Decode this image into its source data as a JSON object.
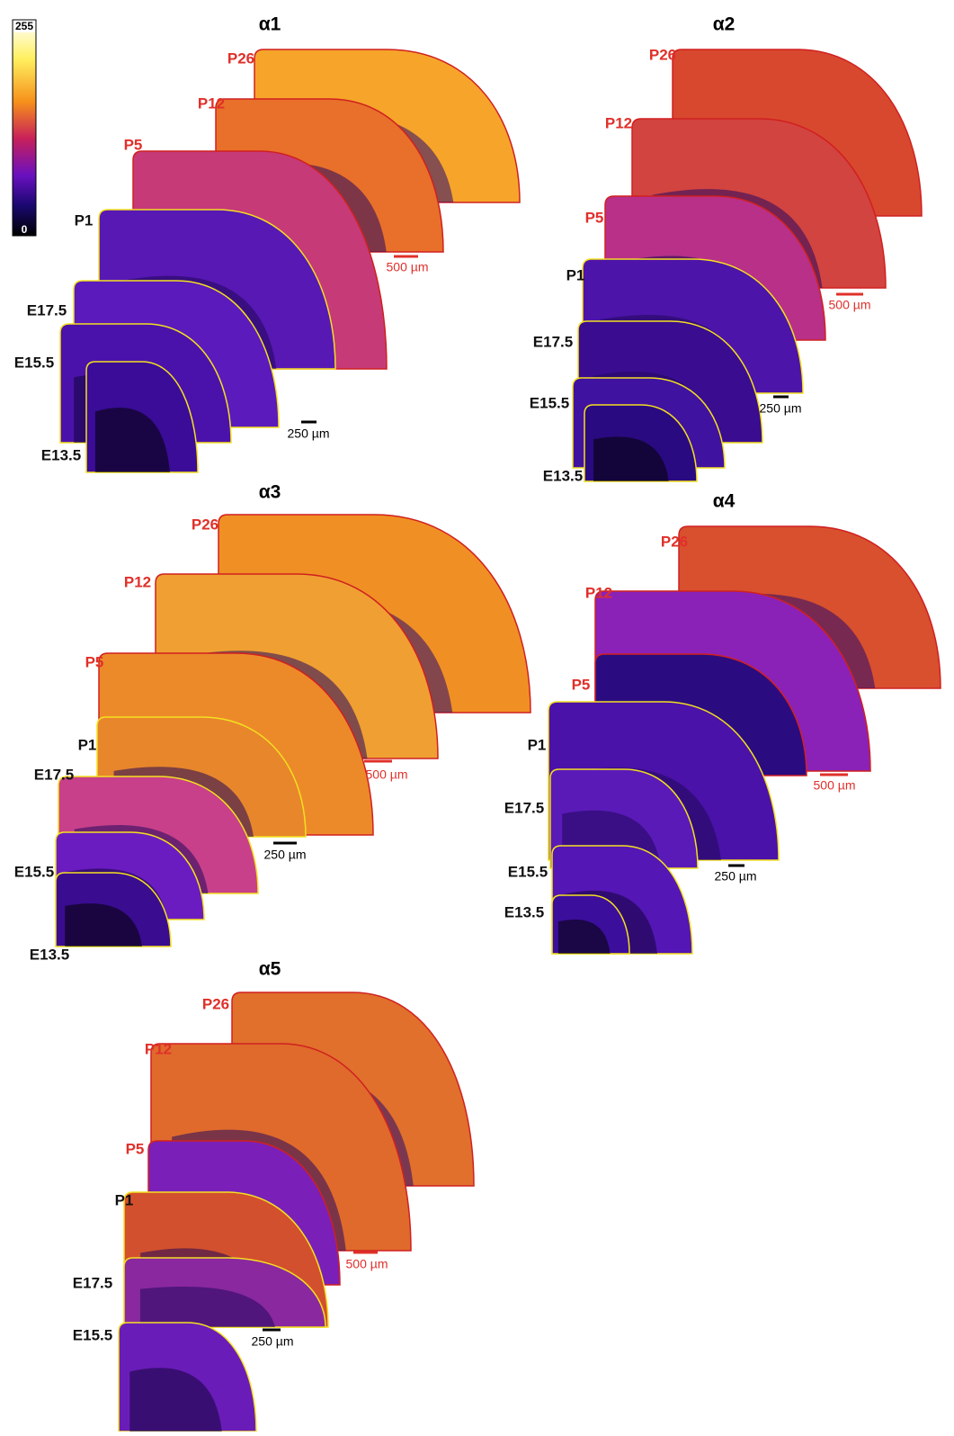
{
  "colorbar": {
    "max": "255",
    "min": "0"
  },
  "panels": [
    {
      "title": "α1",
      "sections": [
        "P26",
        "P12",
        "P5",
        "P1",
        "E17.5",
        "E15.5",
        "E13.5"
      ],
      "scale_bars": [
        "500 µm",
        "250 µm"
      ]
    },
    {
      "title": "α2",
      "sections": [
        "P26",
        "P12",
        "P5",
        "P1",
        "E17.5",
        "E15.5",
        "E13.5"
      ],
      "scale_bars": [
        "500 µm",
        "250 µm"
      ]
    },
    {
      "title": "α3",
      "sections": [
        "P26",
        "P12",
        "P5",
        "P1",
        "E17.5",
        "E15.5",
        "E13.5"
      ],
      "scale_bars": [
        "500 µm",
        "250 µm"
      ]
    },
    {
      "title": "α4",
      "sections": [
        "P26",
        "P12",
        "P5",
        "P1",
        "E17.5",
        "E15.5",
        "E13.5"
      ],
      "scale_bars": [
        "500 µm",
        "250 µm"
      ]
    },
    {
      "title": "α5",
      "sections": [
        "P26",
        "P12",
        "P5",
        "P1",
        "E17.5",
        "E15.5"
      ],
      "scale_bars": [
        "500 µm",
        "250 µm"
      ]
    }
  ]
}
